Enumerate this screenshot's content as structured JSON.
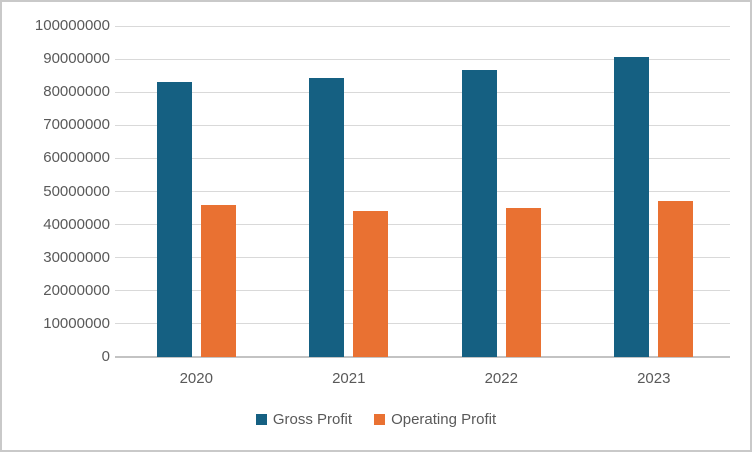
{
  "chart_data": {
    "type": "bar",
    "title": "",
    "xlabel": "",
    "ylabel": "",
    "categories": [
      "2020",
      "2021",
      "2022",
      "2023"
    ],
    "series": [
      {
        "name": "Gross Profit",
        "color": "#156082",
        "values": [
          83000000,
          84300000,
          86700000,
          90500000
        ]
      },
      {
        "name": "Operating Profit",
        "color": "#E97132",
        "values": [
          46000000,
          44000000,
          45000000,
          47000000
        ]
      }
    ],
    "ylim": [
      0,
      100000000
    ],
    "y_ticks": [
      0,
      10000000,
      20000000,
      30000000,
      40000000,
      50000000,
      60000000,
      70000000,
      80000000,
      90000000,
      100000000
    ],
    "grid": true,
    "legend_position": "bottom"
  },
  "colors": {
    "gridline": "#D9D9D9",
    "axis_line": "#C3C3C3",
    "tick_text": "#595959",
    "frame_border": "#C9C9C9",
    "background": "#FFFFFF"
  }
}
